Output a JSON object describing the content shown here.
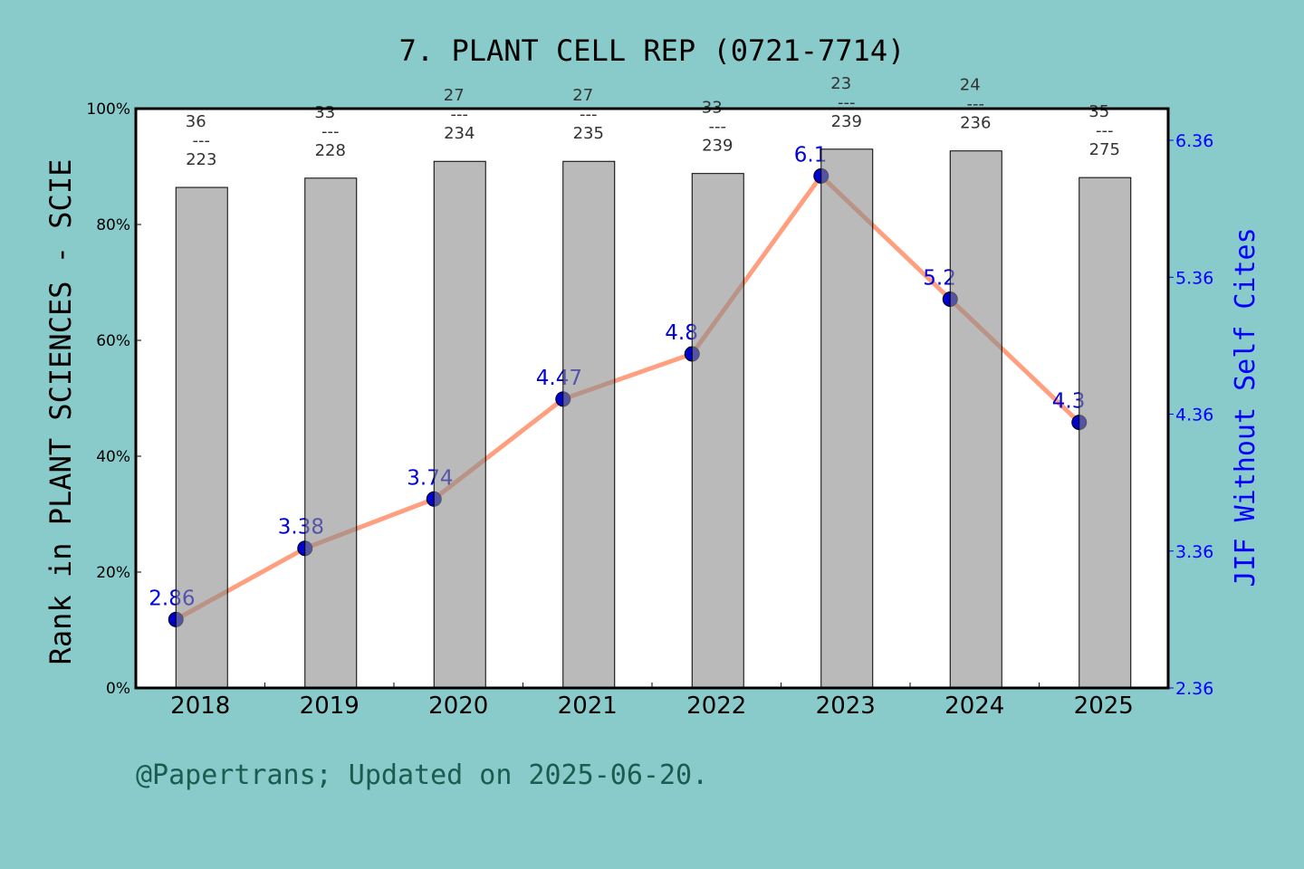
{
  "chart_data": {
    "type": "bar+line",
    "title": "7. PLANT CELL REP (0721-7714)",
    "categories": [
      "2018",
      "2019",
      "2020",
      "2021",
      "2022",
      "2023",
      "2024",
      "2025"
    ],
    "ylabel": "Rank in PLANT SCIENCES - SCIE",
    "y2label": "JIF Without Self Cites",
    "ylim": [
      0,
      100
    ],
    "y_ticks": [
      "0%",
      "20%",
      "40%",
      "60%",
      "80%",
      "100%"
    ],
    "y2lim": [
      2.36,
      6.36
    ],
    "y2_ticks": [
      "2.36",
      "3.36",
      "4.36",
      "5.36",
      "6.36"
    ],
    "bars": {
      "percent": [
        86.4,
        88.0,
        90.9,
        90.9,
        88.8,
        93.0,
        92.7,
        88.1
      ],
      "rank": [
        "36",
        "33",
        "27",
        "27",
        "33",
        "23",
        "24",
        "35"
      ],
      "total": [
        "223",
        "228",
        "234",
        "235",
        "239",
        "239",
        "236",
        "275"
      ],
      "separator": "---",
      "color": "#b8b9ba"
    },
    "line": {
      "values": [
        2.86,
        3.38,
        3.74,
        4.47,
        4.8,
        6.1,
        5.2,
        4.3
      ],
      "labels": [
        "2.86",
        "3.38",
        "3.74",
        "4.47",
        "4.8",
        "6.1",
        "5.2",
        "4.3"
      ],
      "line_color": "#ff9f7f",
      "marker_color": "#0000cc"
    },
    "grid": false
  },
  "footer": "@Papertrans; Updated on 2025-06-20.",
  "colors": {
    "background": "#88cbca",
    "plot": "#ffffff",
    "right_axis": "#0000ff"
  }
}
